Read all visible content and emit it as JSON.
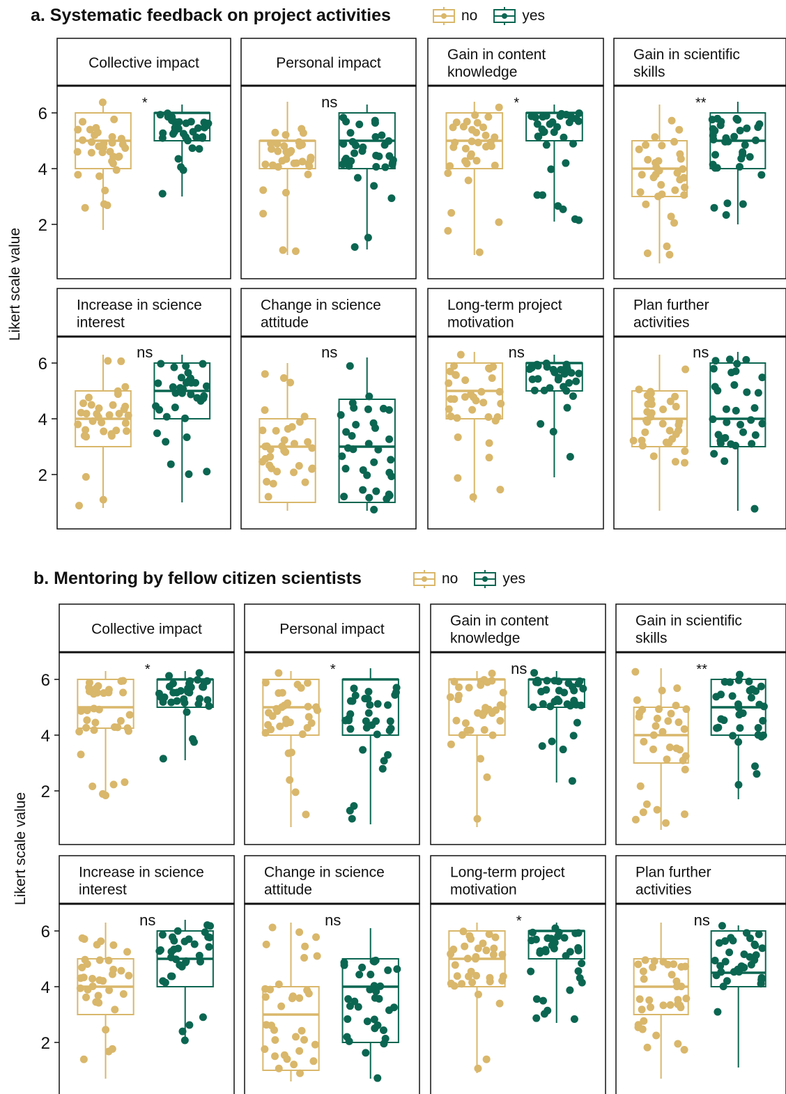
{
  "colors": {
    "no": "#d9b76b",
    "yes": "#0b6651"
  },
  "legend": {
    "no": "no",
    "yes": "yes"
  },
  "panels_text": [
    {
      "title": "a. Systematic feedback on project activities",
      "ylabel": "Likert scale value"
    },
    {
      "title": "b. Mentoring by fellow citizen scientists",
      "ylabel": "Likert scale value"
    }
  ],
  "chart_data": [
    {
      "type": "box",
      "title": "a. Systematic feedback on project activities",
      "ylabel": "Likert scale value",
      "yticks": [
        2,
        4,
        6
      ],
      "ylim": [
        0.5,
        6.5
      ],
      "groups": [
        "no",
        "yes"
      ],
      "facets": [
        {
          "label": "Collective impact",
          "sig": "*",
          "no": {
            "min": 1.8,
            "q1": 4,
            "median": 5,
            "q3": 6,
            "max": 6.4
          },
          "yes": {
            "min": 3.0,
            "q1": 5,
            "median": 6,
            "q3": 6,
            "max": 6.3
          }
        },
        {
          "label": "Personal impact",
          "sig": "ns",
          "no": {
            "min": 0.9,
            "q1": 4,
            "median": 5,
            "q3": 5,
            "max": 6.4
          },
          "yes": {
            "min": 1.1,
            "q1": 4,
            "median": 5,
            "q3": 6,
            "max": 6.3
          }
        },
        {
          "label": "Gain in content knowledge",
          "sig": "*",
          "no": {
            "min": 0.9,
            "q1": 4,
            "median": 5,
            "q3": 6,
            "max": 6.4
          },
          "yes": {
            "min": 2.1,
            "q1": 5,
            "median": 6,
            "q3": 6,
            "max": 6.3
          }
        },
        {
          "label": "Gain in scientific skills",
          "sig": "**",
          "no": {
            "min": 0.6,
            "q1": 3,
            "median": 4,
            "q3": 5,
            "max": 6.3
          },
          "yes": {
            "min": 2.0,
            "q1": 4,
            "median": 5,
            "q3": 6,
            "max": 6.4
          }
        },
        {
          "label": "Increase in science interest",
          "sig": "ns",
          "no": {
            "min": 0.8,
            "q1": 3,
            "median": 4,
            "q3": 5,
            "max": 6.3
          },
          "yes": {
            "min": 1.0,
            "q1": 4,
            "median": 5,
            "q3": 6,
            "max": 6.3
          }
        },
        {
          "label": "Change in science attitude",
          "sig": "ns",
          "no": {
            "min": 0.7,
            "q1": 1,
            "median": 3,
            "q3": 4,
            "max": 6.0
          },
          "yes": {
            "min": 0.7,
            "q1": 1,
            "median": 3,
            "q3": 4.7,
            "max": 6.2
          }
        },
        {
          "label": "Long-term project motivation",
          "sig": "ns",
          "no": {
            "min": 1.0,
            "q1": 4,
            "median": 5,
            "q3": 6,
            "max": 6.4
          },
          "yes": {
            "min": 1.9,
            "q1": 5,
            "median": 6,
            "q3": 6,
            "max": 6.3
          }
        },
        {
          "label": "Plan further activities",
          "sig": "ns",
          "no": {
            "min": 0.7,
            "q1": 3,
            "median": 4,
            "q3": 5,
            "max": 6.3
          },
          "yes": {
            "min": 0.7,
            "q1": 3,
            "median": 4,
            "q3": 6,
            "max": 6.4
          }
        }
      ]
    },
    {
      "type": "box",
      "title": "b. Mentoring by fellow citizen scientists",
      "ylabel": "Likert scale value",
      "yticks": [
        2,
        4,
        6
      ],
      "ylim": [
        0.5,
        6.5
      ],
      "groups": [
        "no",
        "yes"
      ],
      "facets": [
        {
          "label": "Collective impact",
          "sig": "*",
          "no": {
            "min": 1.7,
            "q1": 4.25,
            "median": 5,
            "q3": 6,
            "max": 6.3
          },
          "yes": {
            "min": 3.1,
            "q1": 5,
            "median": 6,
            "q3": 6,
            "max": 6.3
          }
        },
        {
          "label": "Personal impact",
          "sig": "*",
          "no": {
            "min": 0.7,
            "q1": 4,
            "median": 5,
            "q3": 6,
            "max": 6.3
          },
          "yes": {
            "min": 0.8,
            "q1": 4,
            "median": 6,
            "q3": 6,
            "max": 6.4
          }
        },
        {
          "label": "Gain in content knowledge",
          "sig": "ns",
          "no": {
            "min": 0.7,
            "q1": 4,
            "median": 6,
            "q3": 6,
            "max": 6.3
          },
          "yes": {
            "min": 2.3,
            "q1": 5,
            "median": 6,
            "q3": 6,
            "max": 6.3
          }
        },
        {
          "label": "Gain in scientific skills",
          "sig": "**",
          "no": {
            "min": 0.6,
            "q1": 3,
            "median": 4,
            "q3": 5,
            "max": 6.4
          },
          "yes": {
            "min": 1.7,
            "q1": 4,
            "median": 5,
            "q3": 6,
            "max": 6.3
          }
        },
        {
          "label": "Increase in science interest",
          "sig": "ns",
          "no": {
            "min": 0.7,
            "q1": 3,
            "median": 4,
            "q3": 5,
            "max": 6.3
          },
          "yes": {
            "min": 2.0,
            "q1": 4,
            "median": 5,
            "q3": 6,
            "max": 6.4
          }
        },
        {
          "label": "Change in science attitude",
          "sig": "ns",
          "no": {
            "min": 0.6,
            "q1": 1,
            "median": 3,
            "q3": 4,
            "max": 6.3
          },
          "yes": {
            "min": 0.7,
            "q1": 2,
            "median": 4,
            "q3": 5,
            "max": 6.1
          }
        },
        {
          "label": "Long-term project motivation",
          "sig": "*",
          "no": {
            "min": 0.9,
            "q1": 4,
            "median": 5,
            "q3": 6,
            "max": 6.3
          },
          "yes": {
            "min": 2.7,
            "q1": 5,
            "median": 6,
            "q3": 6,
            "max": 6.3
          }
        },
        {
          "label": "Plan further activities",
          "sig": "ns",
          "no": {
            "min": 0.7,
            "q1": 3,
            "median": 4,
            "q3": 5,
            "max": 6.3
          },
          "yes": {
            "min": 1.1,
            "q1": 4,
            "median": 4.5,
            "q3": 6,
            "max": 6.2
          }
        }
      ]
    }
  ]
}
